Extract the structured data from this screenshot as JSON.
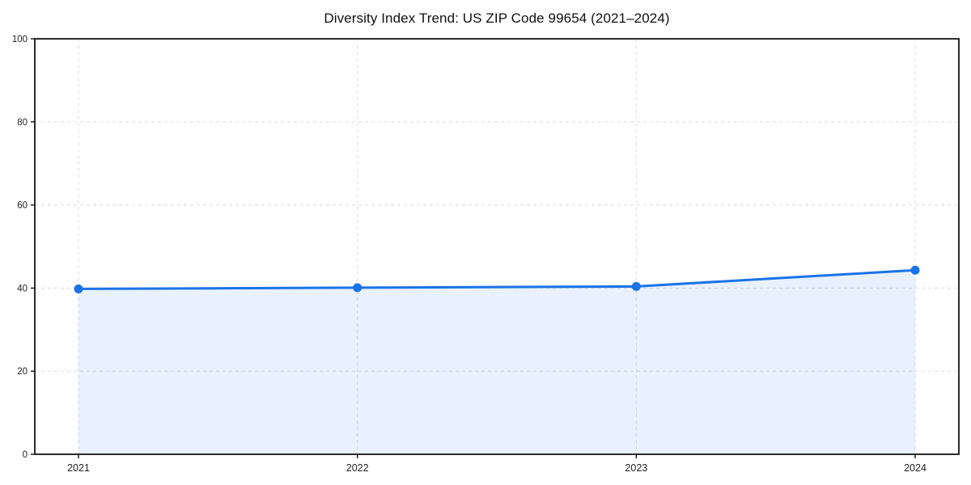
{
  "window": {
    "background": "#ffffff"
  },
  "chart_data": {
    "type": "line",
    "title": "Diversity Index Trend: US ZIP Code 99654 (2021–2024)",
    "series_name": "Diversity Index",
    "categories": [
      "2021",
      "2022",
      "2023",
      "2024"
    ],
    "values": [
      39.8,
      40.1,
      40.4,
      44.3
    ],
    "xlabel": "",
    "ylabel": "",
    "ylim": [
      0,
      100
    ],
    "yticks": [
      0,
      20,
      40,
      60,
      80,
      100
    ],
    "grid": true,
    "grid_style": "dashed",
    "legend": false,
    "area_fill": true,
    "marker": "circle",
    "colors": {
      "line": "#1a73e8",
      "marker": "#1a73e8",
      "fill": "rgba(26,115,232,0.10)",
      "grid": "#dcdcdc",
      "spine": "#141414",
      "tick_label": "#222222",
      "title": "#111111"
    }
  }
}
